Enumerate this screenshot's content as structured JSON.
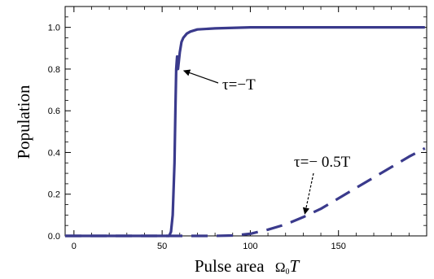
{
  "chart_data": {
    "type": "line",
    "xlabel": "Pulse area",
    "xlabel_symbol": "Ω",
    "xlabel_symbol_sub": "0",
    "xlabel_symbol_tail": "T",
    "ylabel": "Population",
    "xlim": [
      -5,
      200
    ],
    "ylim": [
      0,
      1.1
    ],
    "x_ticks": [
      0,
      50,
      100,
      150
    ],
    "y_ticks": [
      0.0,
      0.2,
      0.4,
      0.6,
      0.8,
      1.0
    ],
    "x_tick_labels": [
      "0",
      "50",
      "100",
      "150"
    ],
    "y_tick_labels": [
      "0.0",
      "0.2",
      "0.4",
      "0.6",
      "0.8",
      "1.0"
    ],
    "line_color": "#3a3a8c",
    "series": [
      {
        "style": "solid",
        "x": [
          -5,
          50,
          54,
          55,
          56,
          57,
          57.5,
          58,
          58.5,
          59,
          60,
          61,
          62,
          64,
          66,
          70,
          80,
          100,
          150,
          199
        ],
        "y": [
          0,
          0,
          0,
          0.02,
          0.1,
          0.35,
          0.6,
          0.8,
          0.86,
          0.8,
          0.88,
          0.93,
          0.95,
          0.97,
          0.98,
          0.99,
          0.995,
          1.0,
          1.0,
          1.0
        ]
      },
      {
        "style": "dashed",
        "x": [
          -5,
          80,
          90,
          100,
          110,
          120,
          130,
          140,
          150,
          160,
          170,
          180,
          190,
          199
        ],
        "y": [
          0,
          0,
          0.002,
          0.01,
          0.03,
          0.055,
          0.09,
          0.13,
          0.18,
          0.23,
          0.28,
          0.33,
          0.38,
          0.42
        ]
      }
    ],
    "annotations": [
      {
        "text": "τ=−T",
        "target": [
          59.5,
          0.8
        ]
      },
      {
        "text": "τ=− 0.5T",
        "target": [
          130,
          0.09
        ]
      }
    ]
  }
}
